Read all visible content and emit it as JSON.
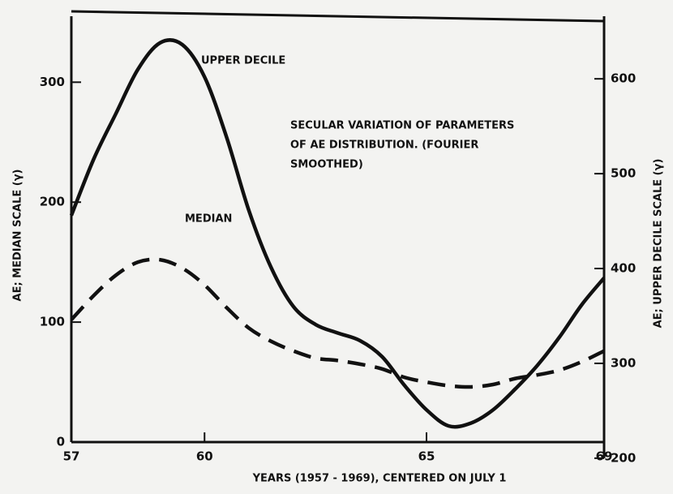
{
  "chart_data": {
    "type": "line",
    "annotation": [
      "SECULAR VARIATION OF PARAMETERS",
      "OF AE DISTRIBUTION. (FOURIER",
      "SMOOTHED)"
    ],
    "xlabel": "YEARS (1957 - 1969), CENTERED ON JULY 1",
    "ylabel": "AE; MEDIAN SCALE (γ)",
    "y2label": "AE; UPPER DECILE SCALE (γ)",
    "x": [
      57,
      57.5,
      58,
      58.5,
      59,
      59.5,
      60,
      60.5,
      61,
      61.5,
      62,
      62.5,
      63,
      63.5,
      64,
      64.5,
      65,
      65.5,
      66,
      66.5,
      67,
      67.5,
      68,
      68.5,
      69
    ],
    "series": [
      {
        "name": "UPPER DECILE",
        "color": "#111111",
        "dashed": false,
        "axis": "y2",
        "values": [
          456,
          515,
          563,
          610,
          638,
          636,
          602,
          538,
          461,
          401,
          360,
          341,
          332,
          324,
          307,
          277,
          251,
          234,
          237,
          251,
          273,
          298,
          328,
          362,
          390
        ]
      },
      {
        "name": "MEDIAN",
        "color": "#111111",
        "dashed": true,
        "axis": "y",
        "values": [
          102,
          122,
          139,
          150,
          152,
          145,
          131,
          112,
          95,
          84,
          76,
          70,
          68,
          65,
          61,
          54,
          50,
          47,
          46,
          48,
          53,
          56,
          60,
          67,
          76
        ]
      }
    ],
    "xlim": [
      57,
      69
    ],
    "xticks": [
      57,
      60,
      65,
      69
    ],
    "ylim": [
      0,
      355
    ],
    "yticks": [
      0,
      100,
      200,
      300
    ],
    "y2lim": [
      217,
      666
    ],
    "y2ticks": [
      200,
      300,
      400,
      500,
      600
    ],
    "grid": false
  }
}
